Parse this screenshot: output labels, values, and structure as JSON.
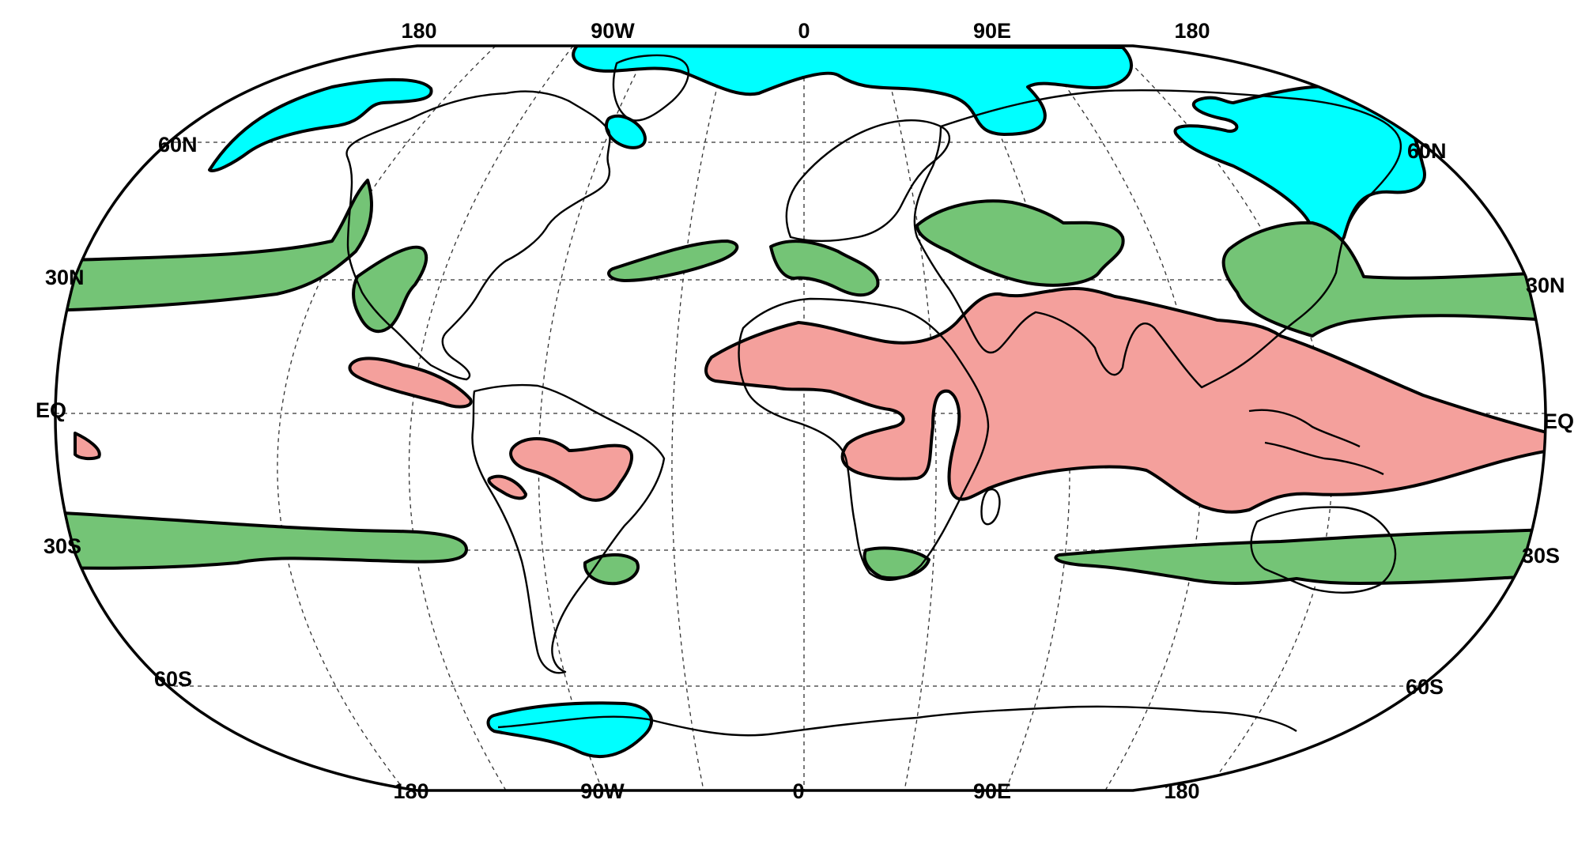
{
  "map": {
    "colors": {
      "cyan_region": "#00ffff",
      "green_region": "#74c476",
      "pink_region": "#f4a09c",
      "gridlines": "#333333",
      "coastlines": "#000000"
    },
    "longitude_labels_top": [
      "180",
      "90W",
      "0",
      "90E",
      "180"
    ],
    "longitude_labels_bottom": [
      "180",
      "90W",
      "0",
      "90E",
      "180"
    ],
    "latitude_labels_left": [
      "60N",
      "30N",
      "EQ",
      "30S",
      "60S"
    ],
    "latitude_labels_right": [
      "60N",
      "30N",
      "EQ",
      "30S",
      "60S"
    ]
  }
}
